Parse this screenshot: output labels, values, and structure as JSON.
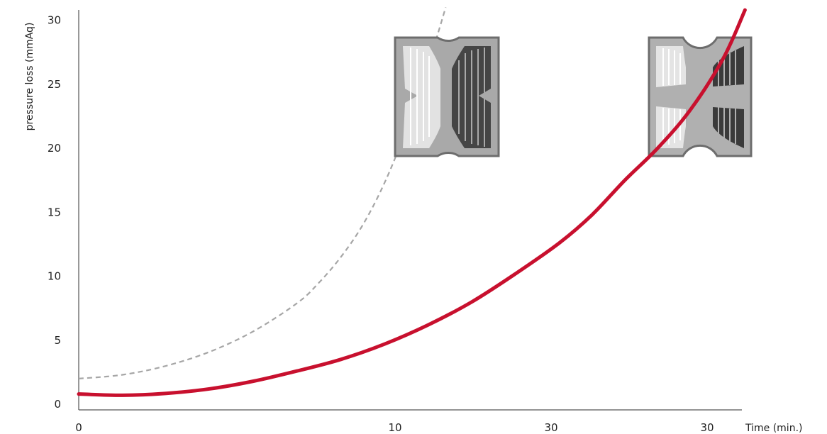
{
  "chart_data": {
    "type": "line",
    "title": "",
    "xlabel": "Time (min.)",
    "ylabel": "pressure loss  (mmAq)",
    "x_tick_labels": [
      "0",
      "10",
      "30",
      "30"
    ],
    "y_ticks": [
      0,
      5,
      10,
      15,
      20,
      25,
      30
    ],
    "ylim": [
      0,
      30
    ],
    "grid": false,
    "legend": "none",
    "series": [
      {
        "style": "dashed",
        "color": "#a6a6a6",
        "points": [
          [
            0,
            2.0
          ],
          [
            2,
            2.3
          ],
          [
            4,
            3.0
          ],
          [
            6,
            4.1
          ],
          [
            8,
            5.7
          ],
          [
            10,
            7.9
          ],
          [
            11,
            9.5
          ],
          [
            12,
            11.5
          ],
          [
            13,
            14.0
          ],
          [
            14,
            17.3
          ],
          [
            15,
            21.5
          ],
          [
            16,
            26.5
          ],
          [
            16.8,
            31.0
          ]
        ]
      },
      {
        "style": "solid",
        "color": "#c8102e",
        "points": [
          [
            0,
            0.8
          ],
          [
            2,
            0.7
          ],
          [
            4,
            0.85
          ],
          [
            6,
            1.2
          ],
          [
            8,
            1.8
          ],
          [
            10,
            2.6
          ],
          [
            12,
            3.5
          ],
          [
            14,
            4.7
          ],
          [
            16,
            6.2
          ],
          [
            18,
            8.0
          ],
          [
            20,
            10.2
          ],
          [
            22,
            12.6
          ],
          [
            23.5,
            14.8
          ],
          [
            25,
            17.5
          ],
          [
            26.5,
            20.0
          ],
          [
            28,
            23.0
          ],
          [
            29.5,
            27.0
          ],
          [
            30.5,
            30.8
          ]
        ]
      }
    ],
    "illustrations": [
      {
        "name": "clogged-filter-cartridge",
        "at_x": 14,
        "at_y": 24.5
      },
      {
        "name": "clean-filter-cartridge",
        "at_x": 28.5,
        "at_y": 24.5
      }
    ]
  }
}
